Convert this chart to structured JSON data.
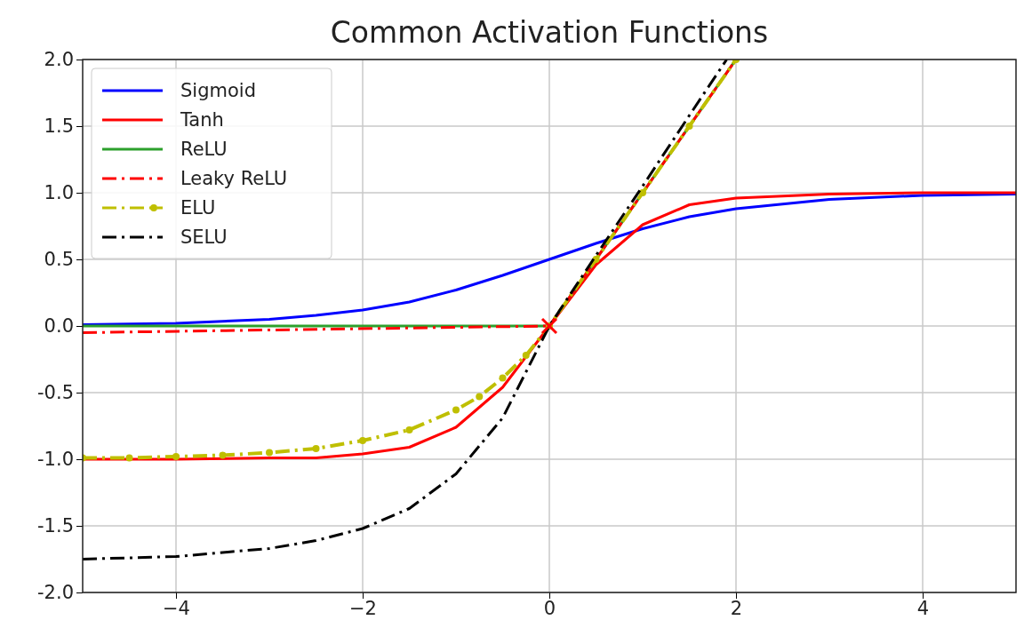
{
  "chart_data": {
    "type": "line",
    "title": "Common Activation Functions",
    "xlim": [
      -5,
      5
    ],
    "ylim": [
      -2,
      2
    ],
    "xticks": [
      {
        "value": -4,
        "label": "−4"
      },
      {
        "value": -2,
        "label": "−2"
      },
      {
        "value": 0,
        "label": "0"
      },
      {
        "value": 2,
        "label": "2"
      },
      {
        "value": 4,
        "label": "4"
      }
    ],
    "yticks": [
      {
        "value": -2,
        "label": "-2.0"
      },
      {
        "value": -1.5,
        "label": "-1.5"
      },
      {
        "value": -1,
        "label": "-1.0"
      },
      {
        "value": -0.5,
        "label": "-0.5"
      },
      {
        "value": 0,
        "label": "0.0"
      },
      {
        "value": 0.5,
        "label": "0.5"
      },
      {
        "value": 1,
        "label": "1.0"
      },
      {
        "value": 1.5,
        "label": "1.5"
      },
      {
        "value": 2,
        "label": "2.0"
      }
    ],
    "grid": true,
    "legend": "top left",
    "series": [
      {
        "name": "Sigmoid",
        "color": "#0000ff",
        "line_style": "solid",
        "x": [
          -5,
          -4,
          -3,
          -2.5,
          -2,
          -1.5,
          -1,
          -0.5,
          0,
          0.5,
          1,
          1.5,
          2,
          3,
          4,
          5
        ],
        "values": [
          0.01,
          0.02,
          0.05,
          0.08,
          0.12,
          0.18,
          0.27,
          0.38,
          0.5,
          0.62,
          0.73,
          0.82,
          0.88,
          0.95,
          0.98,
          0.99
        ]
      },
      {
        "name": "Tanh",
        "color": "#ff0000",
        "line_style": "solid",
        "x": [
          -5,
          -4,
          -3,
          -2.5,
          -2,
          -1.5,
          -1,
          -0.5,
          0,
          0.5,
          1,
          1.5,
          2,
          3,
          4,
          5
        ],
        "values": [
          -1.0,
          -1.0,
          -0.99,
          -0.99,
          -0.96,
          -0.91,
          -0.76,
          -0.46,
          0,
          0.46,
          0.76,
          0.91,
          0.96,
          0.99,
          1.0,
          1.0
        ]
      },
      {
        "name": "ReLU",
        "color": "#2ca02c",
        "line_style": "solid",
        "x": [
          -5,
          0,
          2
        ],
        "values": [
          0,
          0,
          2
        ]
      },
      {
        "name": "Leaky ReLU",
        "color": "#ff0000",
        "line_style": "dashdot",
        "x": [
          -5,
          0,
          2
        ],
        "values": [
          -0.05,
          0,
          2
        ]
      },
      {
        "name": "ELU",
        "color": "#bfbf00",
        "line_style": "dashdot",
        "marker": "circle",
        "x": [
          -5,
          -4.5,
          -4,
          -3.5,
          -3,
          -2.5,
          -2,
          -1.5,
          -1,
          -0.75,
          -0.5,
          -0.25,
          0,
          0.5,
          1,
          1.5,
          2
        ],
        "values": [
          -0.99,
          -0.99,
          -0.98,
          -0.97,
          -0.95,
          -0.92,
          -0.86,
          -0.78,
          -0.63,
          -0.53,
          -0.39,
          -0.22,
          0,
          0.5,
          1,
          1.5,
          2
        ]
      },
      {
        "name": "SELU",
        "color": "#000000",
        "line_style": "dashdot",
        "x": [
          -5,
          -4,
          -3,
          -2.5,
          -2,
          -1.5,
          -1,
          -0.5,
          0,
          0.5,
          1,
          1.5,
          1.9
        ],
        "values": [
          -1.75,
          -1.73,
          -1.67,
          -1.61,
          -1.52,
          -1.37,
          -1.11,
          -0.69,
          0,
          0.53,
          1.05,
          1.58,
          2.0
        ]
      },
      {
        "type": "scatter",
        "color": "#ff0000",
        "marker": "cross",
        "x": [
          0
        ],
        "values": [
          0
        ]
      }
    ]
  }
}
